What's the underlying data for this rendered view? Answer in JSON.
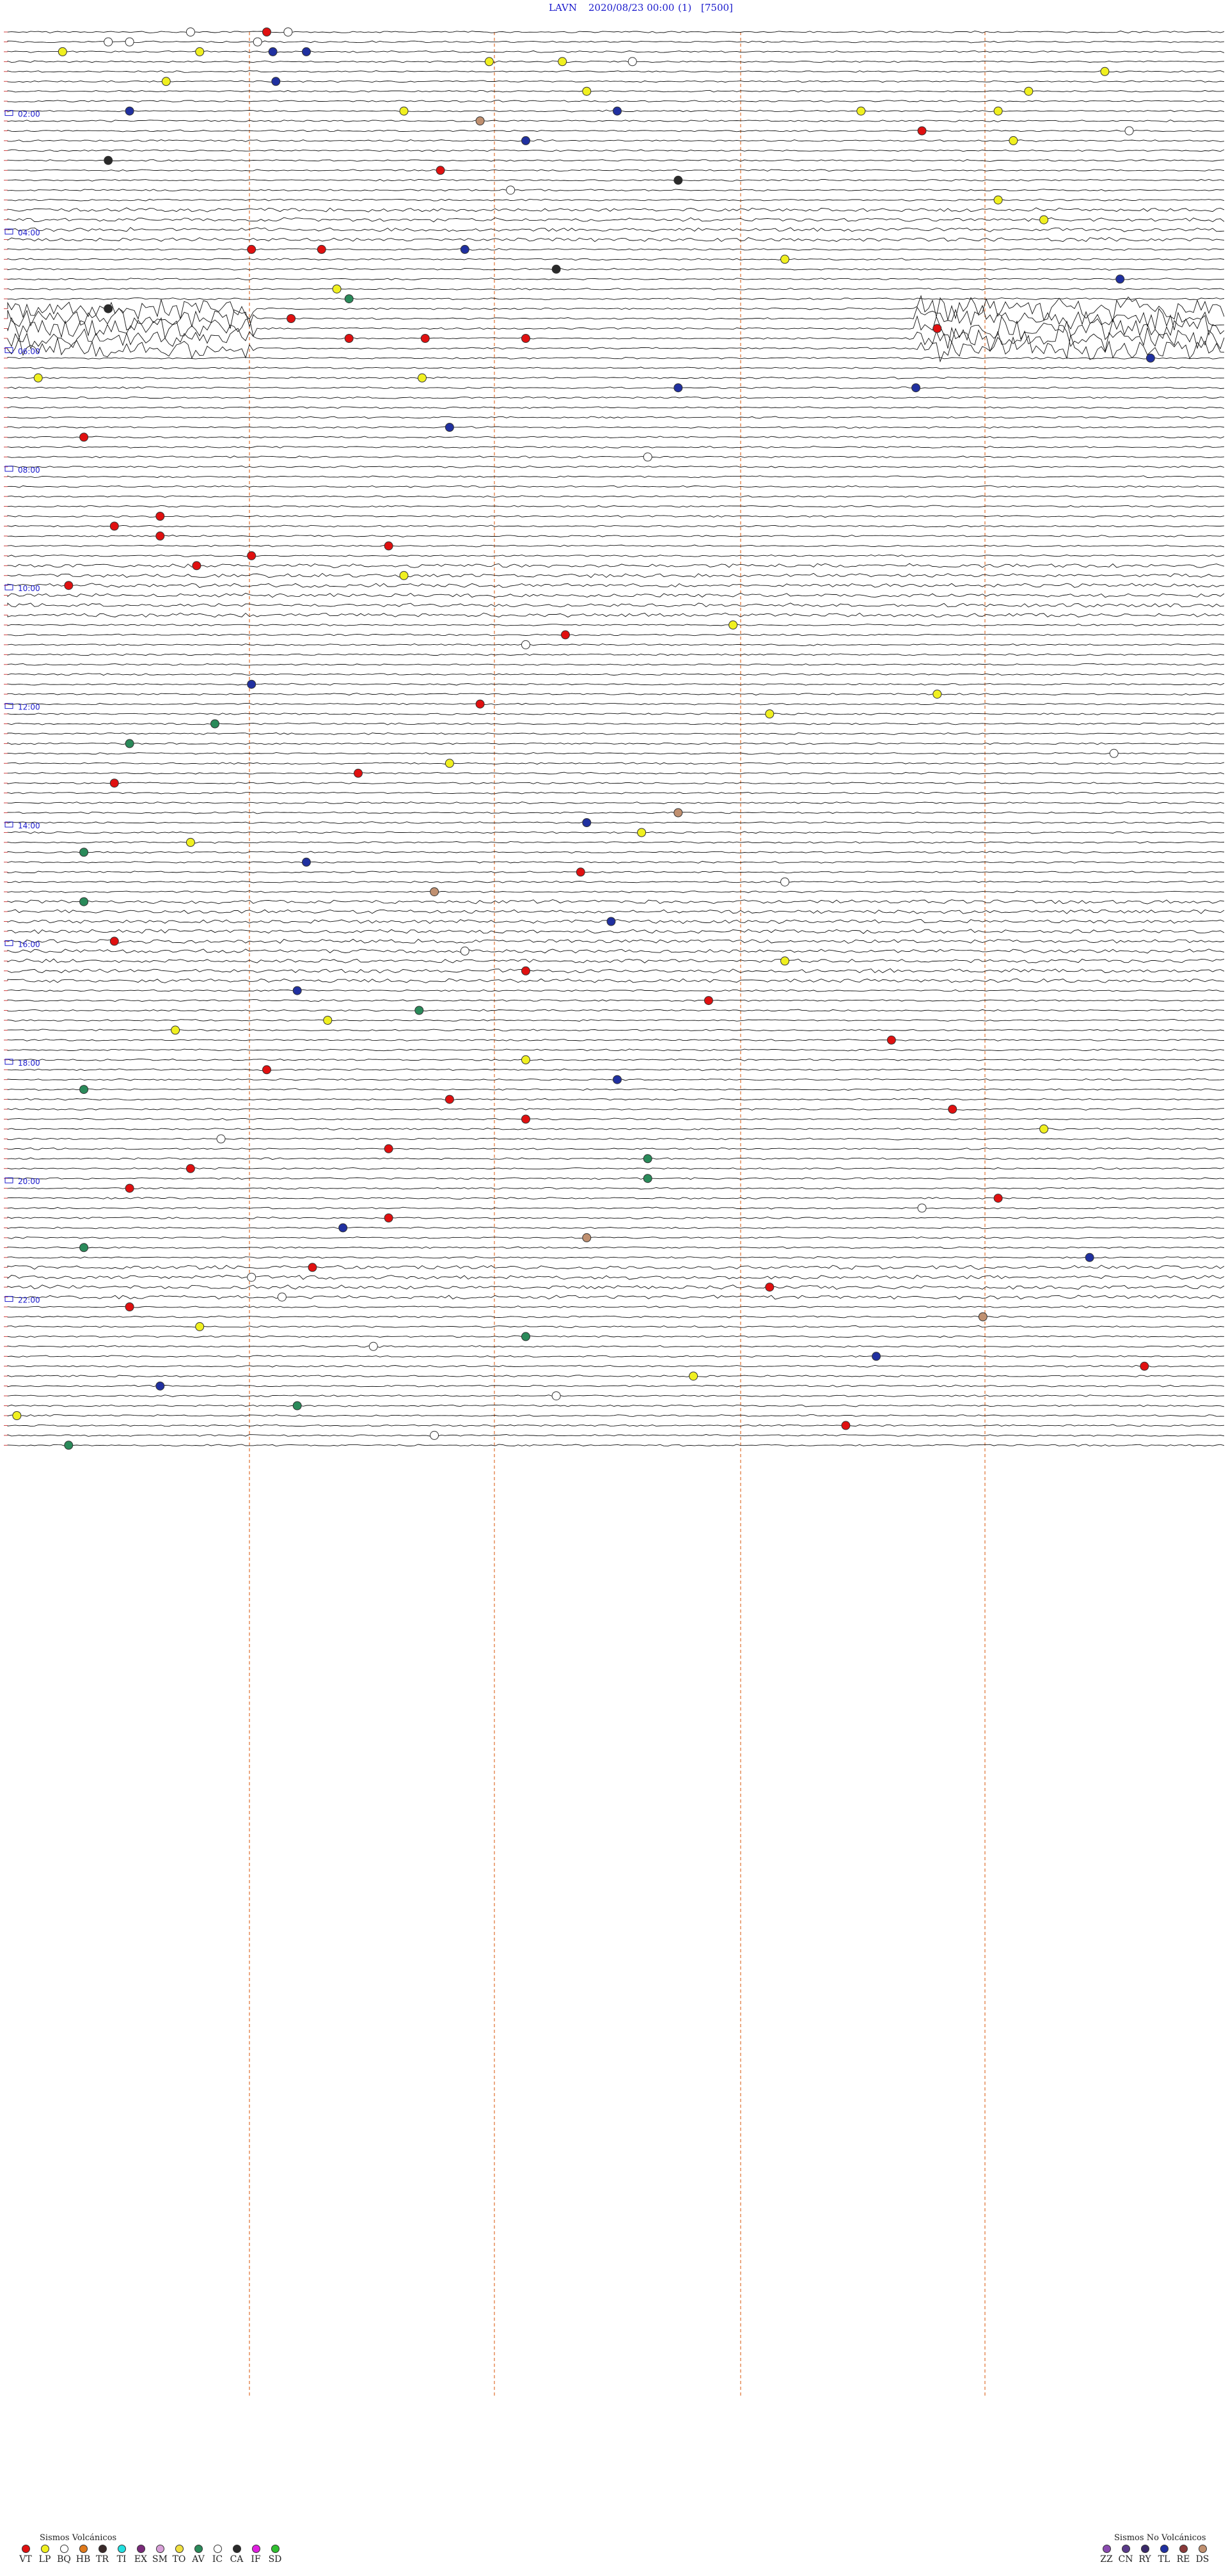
{
  "header": {
    "station": "LAVN",
    "datetime": "2020/08/23 00:00",
    "channel": "(1)",
    "scale": "[7500]"
  },
  "chart_data": {
    "type": "seismogram",
    "hour_labels": [
      "02:00",
      "04:00",
      "06:00",
      "08:00",
      "10:00",
      "12:00",
      "14:00",
      "16:00",
      "18:00",
      "20:00",
      "22:00"
    ],
    "traces_per_hour": 6,
    "total_traces": 144,
    "minutes_per_trace": 10,
    "event_types": {
      "VT": "#e01010",
      "LP": "#f0f020",
      "BQ": "#ffffff",
      "HB": "#e07a1c",
      "TR": "#3a2a2a",
      "TI": "#22e0e0",
      "EX": "#7a2a7a",
      "SM": "#d8a0d8",
      "TO": "#f0e040",
      "AV": "#2a8a5a",
      "IC": "#ffffff",
      "CA": "#2a2a2a",
      "IF": "#e020e0",
      "SD": "#30c030",
      "ZZ": "#8a4ab0",
      "CN": "#5a3a8a",
      "RY": "#3a2a6a",
      "TL": "#2030a0",
      "RE": "#8a3a3a",
      "DS": "#c09070"
    },
    "events": [
      {
        "trace": 0,
        "min": 8.5,
        "type": "VT"
      },
      {
        "trace": 0,
        "min": 9.2,
        "type": "IC"
      },
      {
        "trace": 0,
        "min": 6.0,
        "type": "IC"
      },
      {
        "trace": 1,
        "min": 3.3,
        "type": "IC"
      },
      {
        "trace": 1,
        "min": 4.0,
        "type": "IC"
      },
      {
        "trace": 1,
        "min": 8.2,
        "type": "IC"
      },
      {
        "trace": 2,
        "min": 1.8,
        "type": "LP"
      },
      {
        "trace": 2,
        "min": 6.3,
        "type": "LP"
      },
      {
        "trace": 2,
        "min": 8.7,
        "type": "TL"
      },
      {
        "trace": 2,
        "min": 9.8,
        "type": "TL"
      },
      {
        "trace": 3,
        "min": 15.8,
        "type": "LP"
      },
      {
        "trace": 3,
        "min": 18.2,
        "type": "LP"
      },
      {
        "trace": 3,
        "min": 20.5,
        "type": "IC"
      },
      {
        "trace": 4,
        "min": 36.0,
        "type": "LP"
      },
      {
        "trace": 5,
        "min": 5.2,
        "type": "LP"
      },
      {
        "trace": 5,
        "min": 8.8,
        "type": "TL"
      },
      {
        "trace": 6,
        "min": 19.0,
        "type": "LP"
      },
      {
        "trace": 6,
        "min": 33.5,
        "type": "LP"
      },
      {
        "trace": 6,
        "min": 41.5,
        "type": "LP"
      },
      {
        "trace": 8,
        "min": 4.0,
        "type": "TL"
      },
      {
        "trace": 8,
        "min": 13.0,
        "type": "LP"
      },
      {
        "trace": 8,
        "min": 20.0,
        "type": "TL"
      },
      {
        "trace": 8,
        "min": 28.0,
        "type": "LP"
      },
      {
        "trace": 8,
        "min": 32.5,
        "type": "LP"
      },
      {
        "trace": 9,
        "min": 15.5,
        "type": "DS"
      },
      {
        "trace": 10,
        "min": 30.0,
        "type": "VT"
      },
      {
        "trace": 10,
        "min": 36.8,
        "type": "IC"
      },
      {
        "trace": 11,
        "min": 17.0,
        "type": "TL"
      },
      {
        "trace": 11,
        "min": 33.0,
        "type": "LP"
      },
      {
        "trace": 13,
        "min": 3.3,
        "type": "CA"
      },
      {
        "trace": 14,
        "min": 14.2,
        "type": "VT"
      },
      {
        "trace": 15,
        "min": 22.0,
        "type": "CA"
      },
      {
        "trace": 16,
        "min": 16.5,
        "type": "IC"
      },
      {
        "trace": 17,
        "min": 32.5,
        "type": "LP"
      },
      {
        "trace": 19,
        "min": 34.0,
        "type": "LP"
      },
      {
        "trace": 22,
        "min": 15.0,
        "type": "TL"
      },
      {
        "trace": 22,
        "min": 8.0,
        "type": "VT"
      },
      {
        "trace": 22,
        "min": 10.3,
        "type": "VT"
      },
      {
        "trace": 23,
        "min": 25.5,
        "type": "LP"
      },
      {
        "trace": 24,
        "min": 18.0,
        "type": "CA"
      },
      {
        "trace": 25,
        "min": 36.5,
        "type": "TL"
      },
      {
        "trace": 26,
        "min": 10.8,
        "type": "LP"
      },
      {
        "trace": 27,
        "min": 11.2,
        "type": "AV"
      },
      {
        "trace": 28,
        "min": 3.3,
        "type": "CA"
      },
      {
        "trace": 29,
        "min": 9.3,
        "type": "VT"
      },
      {
        "trace": 30,
        "min": 30.5,
        "type": "VT"
      },
      {
        "trace": 31,
        "min": 13.7,
        "type": "VT"
      },
      {
        "trace": 31,
        "min": 17.0,
        "type": "VT"
      },
      {
        "trace": 31,
        "min": 11.2,
        "type": "VT"
      },
      {
        "trace": 33,
        "min": 37.5,
        "type": "TL"
      },
      {
        "trace": 35,
        "min": 1.0,
        "type": "LP"
      },
      {
        "trace": 35,
        "min": 13.6,
        "type": "LP"
      },
      {
        "trace": 36,
        "min": 22.0,
        "type": "TL"
      },
      {
        "trace": 36,
        "min": 29.8,
        "type": "TL"
      },
      {
        "trace": 40,
        "min": 14.5,
        "type": "TL"
      },
      {
        "trace": 41,
        "min": 2.5,
        "type": "VT"
      },
      {
        "trace": 43,
        "min": 21.0,
        "type": "IC"
      },
      {
        "trace": 49,
        "min": 5.0,
        "type": "VT"
      },
      {
        "trace": 50,
        "min": 3.5,
        "type": "VT"
      },
      {
        "trace": 51,
        "min": 5.0,
        "type": "VT"
      },
      {
        "trace": 52,
        "min": 12.5,
        "type": "VT"
      },
      {
        "trace": 53,
        "min": 8.0,
        "type": "VT"
      },
      {
        "trace": 54,
        "min": 6.2,
        "type": "VT"
      },
      {
        "trace": 55,
        "min": 13.0,
        "type": "LP"
      },
      {
        "trace": 56,
        "min": 2.0,
        "type": "VT"
      },
      {
        "trace": 60,
        "min": 23.8,
        "type": "LP"
      },
      {
        "trace": 61,
        "min": 18.3,
        "type": "VT"
      },
      {
        "trace": 62,
        "min": 17.0,
        "type": "IC"
      },
      {
        "trace": 66,
        "min": 8.0,
        "type": "TL"
      },
      {
        "trace": 67,
        "min": 30.5,
        "type": "LP"
      },
      {
        "trace": 68,
        "min": 15.5,
        "type": "VT"
      },
      {
        "trace": 69,
        "min": 25.0,
        "type": "LP"
      },
      {
        "trace": 70,
        "min": 6.8,
        "type": "AV"
      },
      {
        "trace": 72,
        "min": 4.0,
        "type": "AV"
      },
      {
        "trace": 73,
        "min": 36.3,
        "type": "IC"
      },
      {
        "trace": 74,
        "min": 14.5,
        "type": "LP"
      },
      {
        "trace": 75,
        "min": 11.5,
        "type": "VT"
      },
      {
        "trace": 76,
        "min": 3.5,
        "type": "VT"
      },
      {
        "trace": 79,
        "min": 22.0,
        "type": "DS"
      },
      {
        "trace": 80,
        "min": 19.0,
        "type": "TL"
      },
      {
        "trace": 81,
        "min": 20.8,
        "type": "LP"
      },
      {
        "trace": 82,
        "min": 6.0,
        "type": "LP"
      },
      {
        "trace": 83,
        "min": 2.5,
        "type": "AV"
      },
      {
        "trace": 84,
        "min": 9.8,
        "type": "TL"
      },
      {
        "trace": 85,
        "min": 18.8,
        "type": "VT"
      },
      {
        "trace": 86,
        "min": 25.5,
        "type": "IC"
      },
      {
        "trace": 87,
        "min": 14.0,
        "type": "DS"
      },
      {
        "trace": 88,
        "min": 2.5,
        "type": "AV"
      },
      {
        "trace": 90,
        "min": 19.8,
        "type": "TL"
      },
      {
        "trace": 92,
        "min": 3.5,
        "type": "VT"
      },
      {
        "trace": 93,
        "min": 15.0,
        "type": "IC"
      },
      {
        "trace": 94,
        "min": 25.5,
        "type": "LP"
      },
      {
        "trace": 95,
        "min": 17.0,
        "type": "VT"
      },
      {
        "trace": 97,
        "min": 9.5,
        "type": "TL"
      },
      {
        "trace": 98,
        "min": 23.0,
        "type": "VT"
      },
      {
        "trace": 99,
        "min": 13.5,
        "type": "AV"
      },
      {
        "trace": 100,
        "min": 10.5,
        "type": "LP"
      },
      {
        "trace": 101,
        "min": 5.5,
        "type": "LP"
      },
      {
        "trace": 102,
        "min": 29.0,
        "type": "VT"
      },
      {
        "trace": 104,
        "min": 17.0,
        "type": "LP"
      },
      {
        "trace": 105,
        "min": 8.5,
        "type": "VT"
      },
      {
        "trace": 106,
        "min": 20.0,
        "type": "TL"
      },
      {
        "trace": 107,
        "min": 2.5,
        "type": "AV"
      },
      {
        "trace": 108,
        "min": 14.5,
        "type": "VT"
      },
      {
        "trace": 109,
        "min": 31.0,
        "type": "VT"
      },
      {
        "trace": 110,
        "min": 17.0,
        "type": "VT"
      },
      {
        "trace": 111,
        "min": 34.0,
        "type": "LP"
      },
      {
        "trace": 112,
        "min": 7.0,
        "type": "IC"
      },
      {
        "trace": 113,
        "min": 12.5,
        "type": "VT"
      },
      {
        "trace": 114,
        "min": 21.0,
        "type": "AV"
      },
      {
        "trace": 115,
        "min": 6.0,
        "type": "VT"
      },
      {
        "trace": 116,
        "min": 21.0,
        "type": "AV"
      },
      {
        "trace": 117,
        "min": 4.0,
        "type": "VT"
      },
      {
        "trace": 118,
        "min": 32.5,
        "type": "VT"
      },
      {
        "trace": 119,
        "min": 30.0,
        "type": "IC"
      },
      {
        "trace": 120,
        "min": 12.5,
        "type": "VT"
      },
      {
        "trace": 121,
        "min": 11.0,
        "type": "TL"
      },
      {
        "trace": 122,
        "min": 19.0,
        "type": "DS"
      },
      {
        "trace": 123,
        "min": 2.5,
        "type": "AV"
      },
      {
        "trace": 124,
        "min": 35.5,
        "type": "TL"
      },
      {
        "trace": 125,
        "min": 10.0,
        "type": "VT"
      },
      {
        "trace": 126,
        "min": 8.0,
        "type": "IC"
      },
      {
        "trace": 127,
        "min": 25.0,
        "type": "VT"
      },
      {
        "trace": 128,
        "min": 9.0,
        "type": "IC"
      },
      {
        "trace": 129,
        "min": 4.0,
        "type": "VT"
      },
      {
        "trace": 130,
        "min": 32.0,
        "type": "DS"
      },
      {
        "trace": 131,
        "min": 6.3,
        "type": "LP"
      },
      {
        "trace": 132,
        "min": 17.0,
        "type": "AV"
      },
      {
        "trace": 133,
        "min": 12.0,
        "type": "IC"
      },
      {
        "trace": 134,
        "min": 28.5,
        "type": "TL"
      },
      {
        "trace": 135,
        "min": 37.3,
        "type": "VT"
      },
      {
        "trace": 136,
        "min": 22.5,
        "type": "LP"
      },
      {
        "trace": 137,
        "min": 5.0,
        "type": "TL"
      },
      {
        "trace": 138,
        "min": 18.0,
        "type": "IC"
      },
      {
        "trace": 139,
        "min": 9.5,
        "type": "AV"
      },
      {
        "trace": 140,
        "min": 0.3,
        "type": "LP"
      },
      {
        "trace": 141,
        "min": 27.5,
        "type": "VT"
      },
      {
        "trace": 142,
        "min": 14.0,
        "type": "IC"
      },
      {
        "trace": 143,
        "min": 2.0,
        "type": "AV"
      }
    ]
  },
  "legend_volcanic": {
    "title": "Sismos Volcánicos",
    "items": [
      "VT",
      "LP",
      "BQ",
      "HB",
      "TR",
      "TI",
      "EX",
      "SM",
      "TO",
      "AV",
      "IC",
      "CA",
      "IF",
      "SD"
    ]
  },
  "legend_nonvolcanic": {
    "title": "Sismos No Volcánicos",
    "items": [
      "ZZ",
      "CN",
      "RY",
      "TL",
      "RE",
      "DS"
    ]
  }
}
